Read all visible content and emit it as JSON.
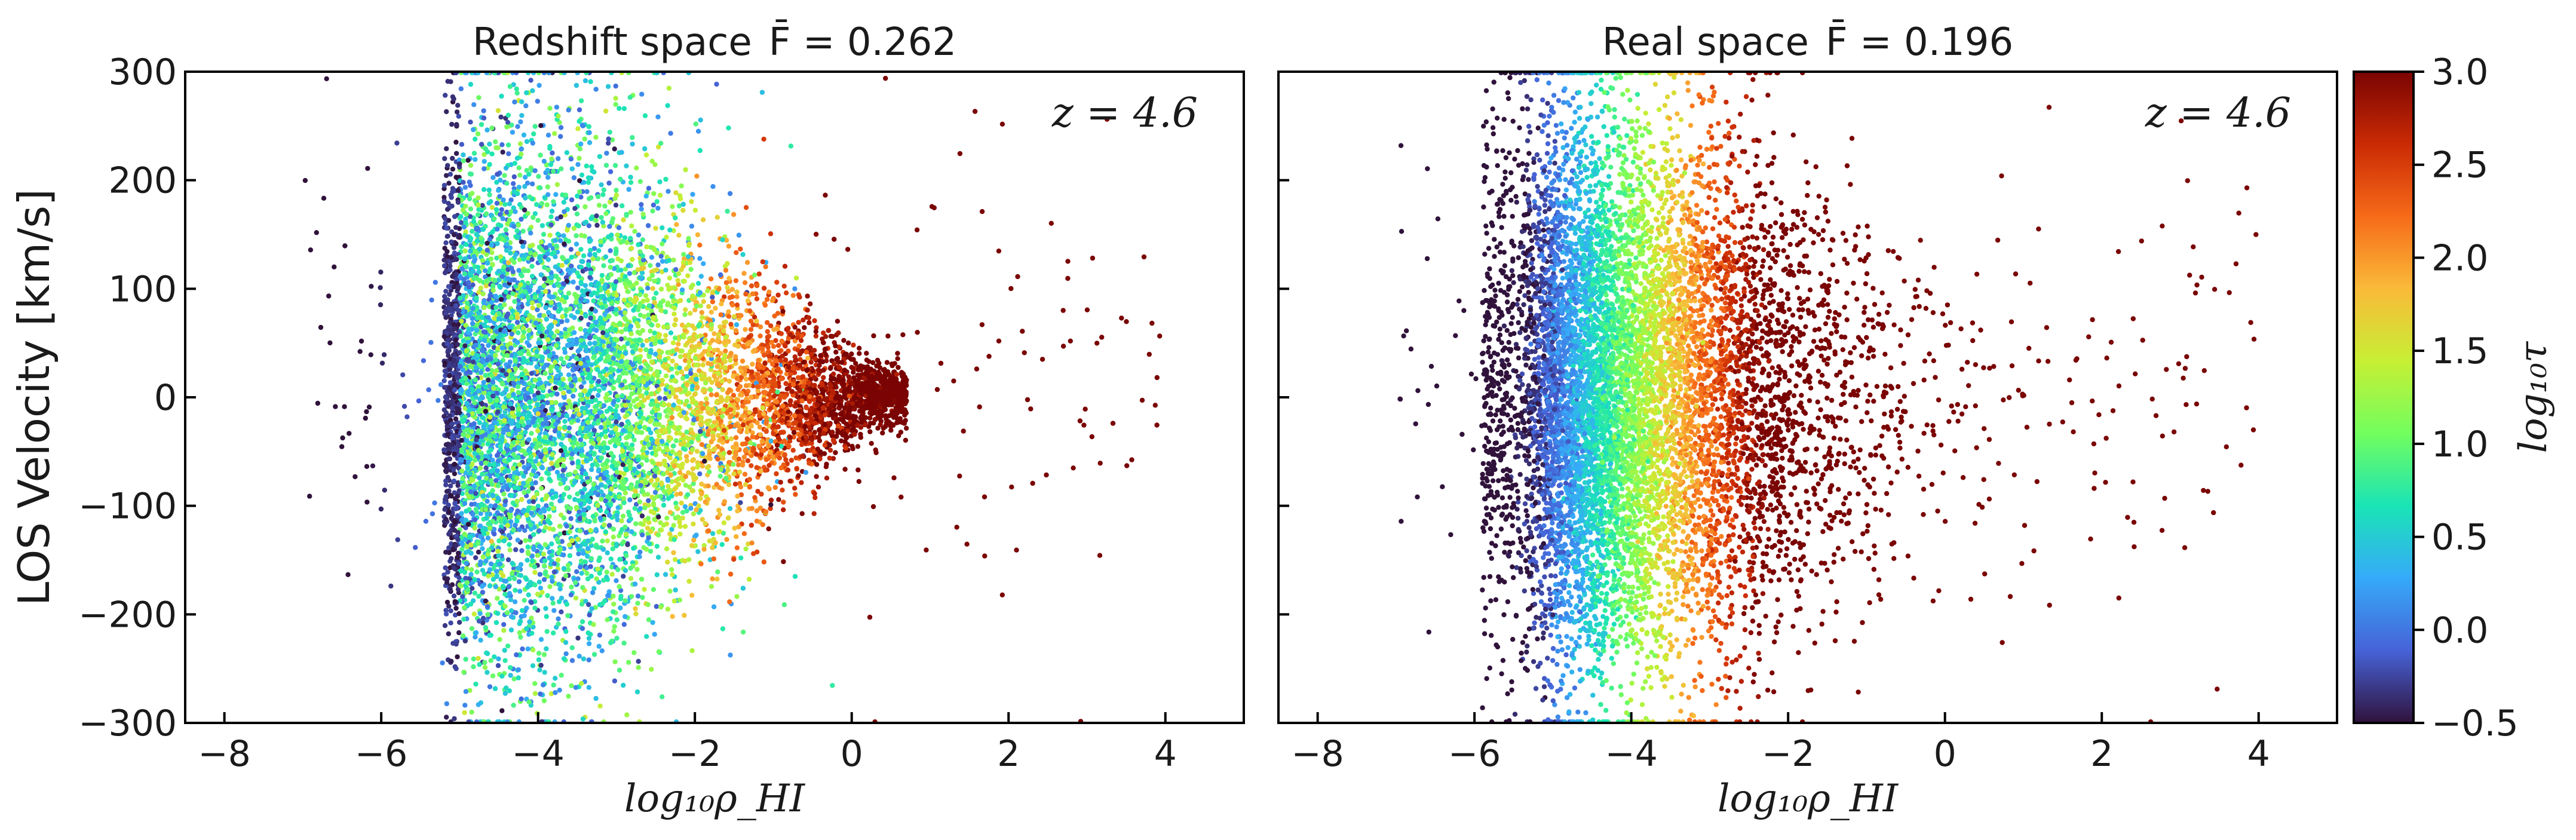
{
  "chart_data": [
    {
      "type": "scatter",
      "title": "Redshift space",
      "title_stat": "F̄ = 0.262",
      "annotation": "z = 4.6",
      "xlabel": "log₁₀ρ_HI",
      "ylabel": "LOS Velocity [km/s]",
      "xlim": [
        -8.5,
        5
      ],
      "ylim": [
        -300,
        300
      ],
      "xticks": [
        -8,
        -6,
        -4,
        -2,
        0,
        2,
        4
      ],
      "yticks": [
        -300,
        -200,
        -100,
        0,
        100,
        200,
        300
      ],
      "xtick_labels": [
        "−8",
        "−6",
        "−4",
        "−2",
        "0",
        "2",
        "4"
      ],
      "ytick_labels": [
        "−300",
        "−200",
        "−100",
        "0",
        "100",
        "200",
        "300"
      ],
      "color_variable": "log₁₀τ",
      "summary": [
        {
          "x": -5.6,
          "y": 0,
          "log10_tau": -0.5
        },
        {
          "x": -4.5,
          "y": 0,
          "log10_tau": 0.3
        },
        {
          "x": -3.0,
          "y": 0,
          "log10_tau": 1.0
        },
        {
          "x": -2.0,
          "y": 0,
          "log10_tau": 2.0
        },
        {
          "x": -1.0,
          "y": 0,
          "log10_tau": 2.8
        },
        {
          "x": 0.0,
          "y": 0,
          "log10_tau": 3.0
        },
        {
          "x": 1.5,
          "y": 0,
          "log10_tau": 3.0
        },
        {
          "x": -4.0,
          "y": 200,
          "log10_tau": 0.3
        },
        {
          "x": -4.0,
          "y": -200,
          "log10_tau": 0.3
        }
      ]
    },
    {
      "type": "scatter",
      "title": "Real space",
      "title_stat": "F̄ = 0.196",
      "annotation": "z = 4.6",
      "xlabel": "log₁₀ρ_HI",
      "xlim": [
        -8.5,
        5
      ],
      "ylim": [
        -300,
        300
      ],
      "xticks": [
        -8,
        -6,
        -4,
        -2,
        0,
        2,
        4
      ],
      "xtick_labels": [
        "−8",
        "−6",
        "−4",
        "−2",
        "0",
        "2",
        "4"
      ],
      "color_variable": "log₁₀τ",
      "summary": [
        {
          "x": -5.5,
          "y": 0,
          "log10_tau": -0.5
        },
        {
          "x": -4.5,
          "y": 0,
          "log10_tau": 0.2
        },
        {
          "x": -3.7,
          "y": 0,
          "log10_tau": 0.8
        },
        {
          "x": -3.0,
          "y": 0,
          "log10_tau": 1.5
        },
        {
          "x": -2.3,
          "y": 0,
          "log10_tau": 2.2
        },
        {
          "x": -1.0,
          "y": 0,
          "log10_tau": 3.0
        },
        {
          "x": 1.0,
          "y": 0,
          "log10_tau": 3.0
        }
      ]
    }
  ],
  "colorbar": {
    "label": "log₁₀τ",
    "range": [
      -0.5,
      3.0
    ],
    "ticks": [
      -0.5,
      0.0,
      0.5,
      1.0,
      1.5,
      2.0,
      2.5,
      3.0
    ],
    "tick_labels": [
      "−0.5",
      "0.0",
      "0.5",
      "1.0",
      "1.5",
      "2.0",
      "2.5",
      "3.0"
    ],
    "colormap": [
      "#30123b",
      "#4662d7",
      "#36aaf9",
      "#1ae4b6",
      "#72fe5e",
      "#c7ef34",
      "#faba39",
      "#f66b19",
      "#ca2a04",
      "#7a0403"
    ]
  }
}
